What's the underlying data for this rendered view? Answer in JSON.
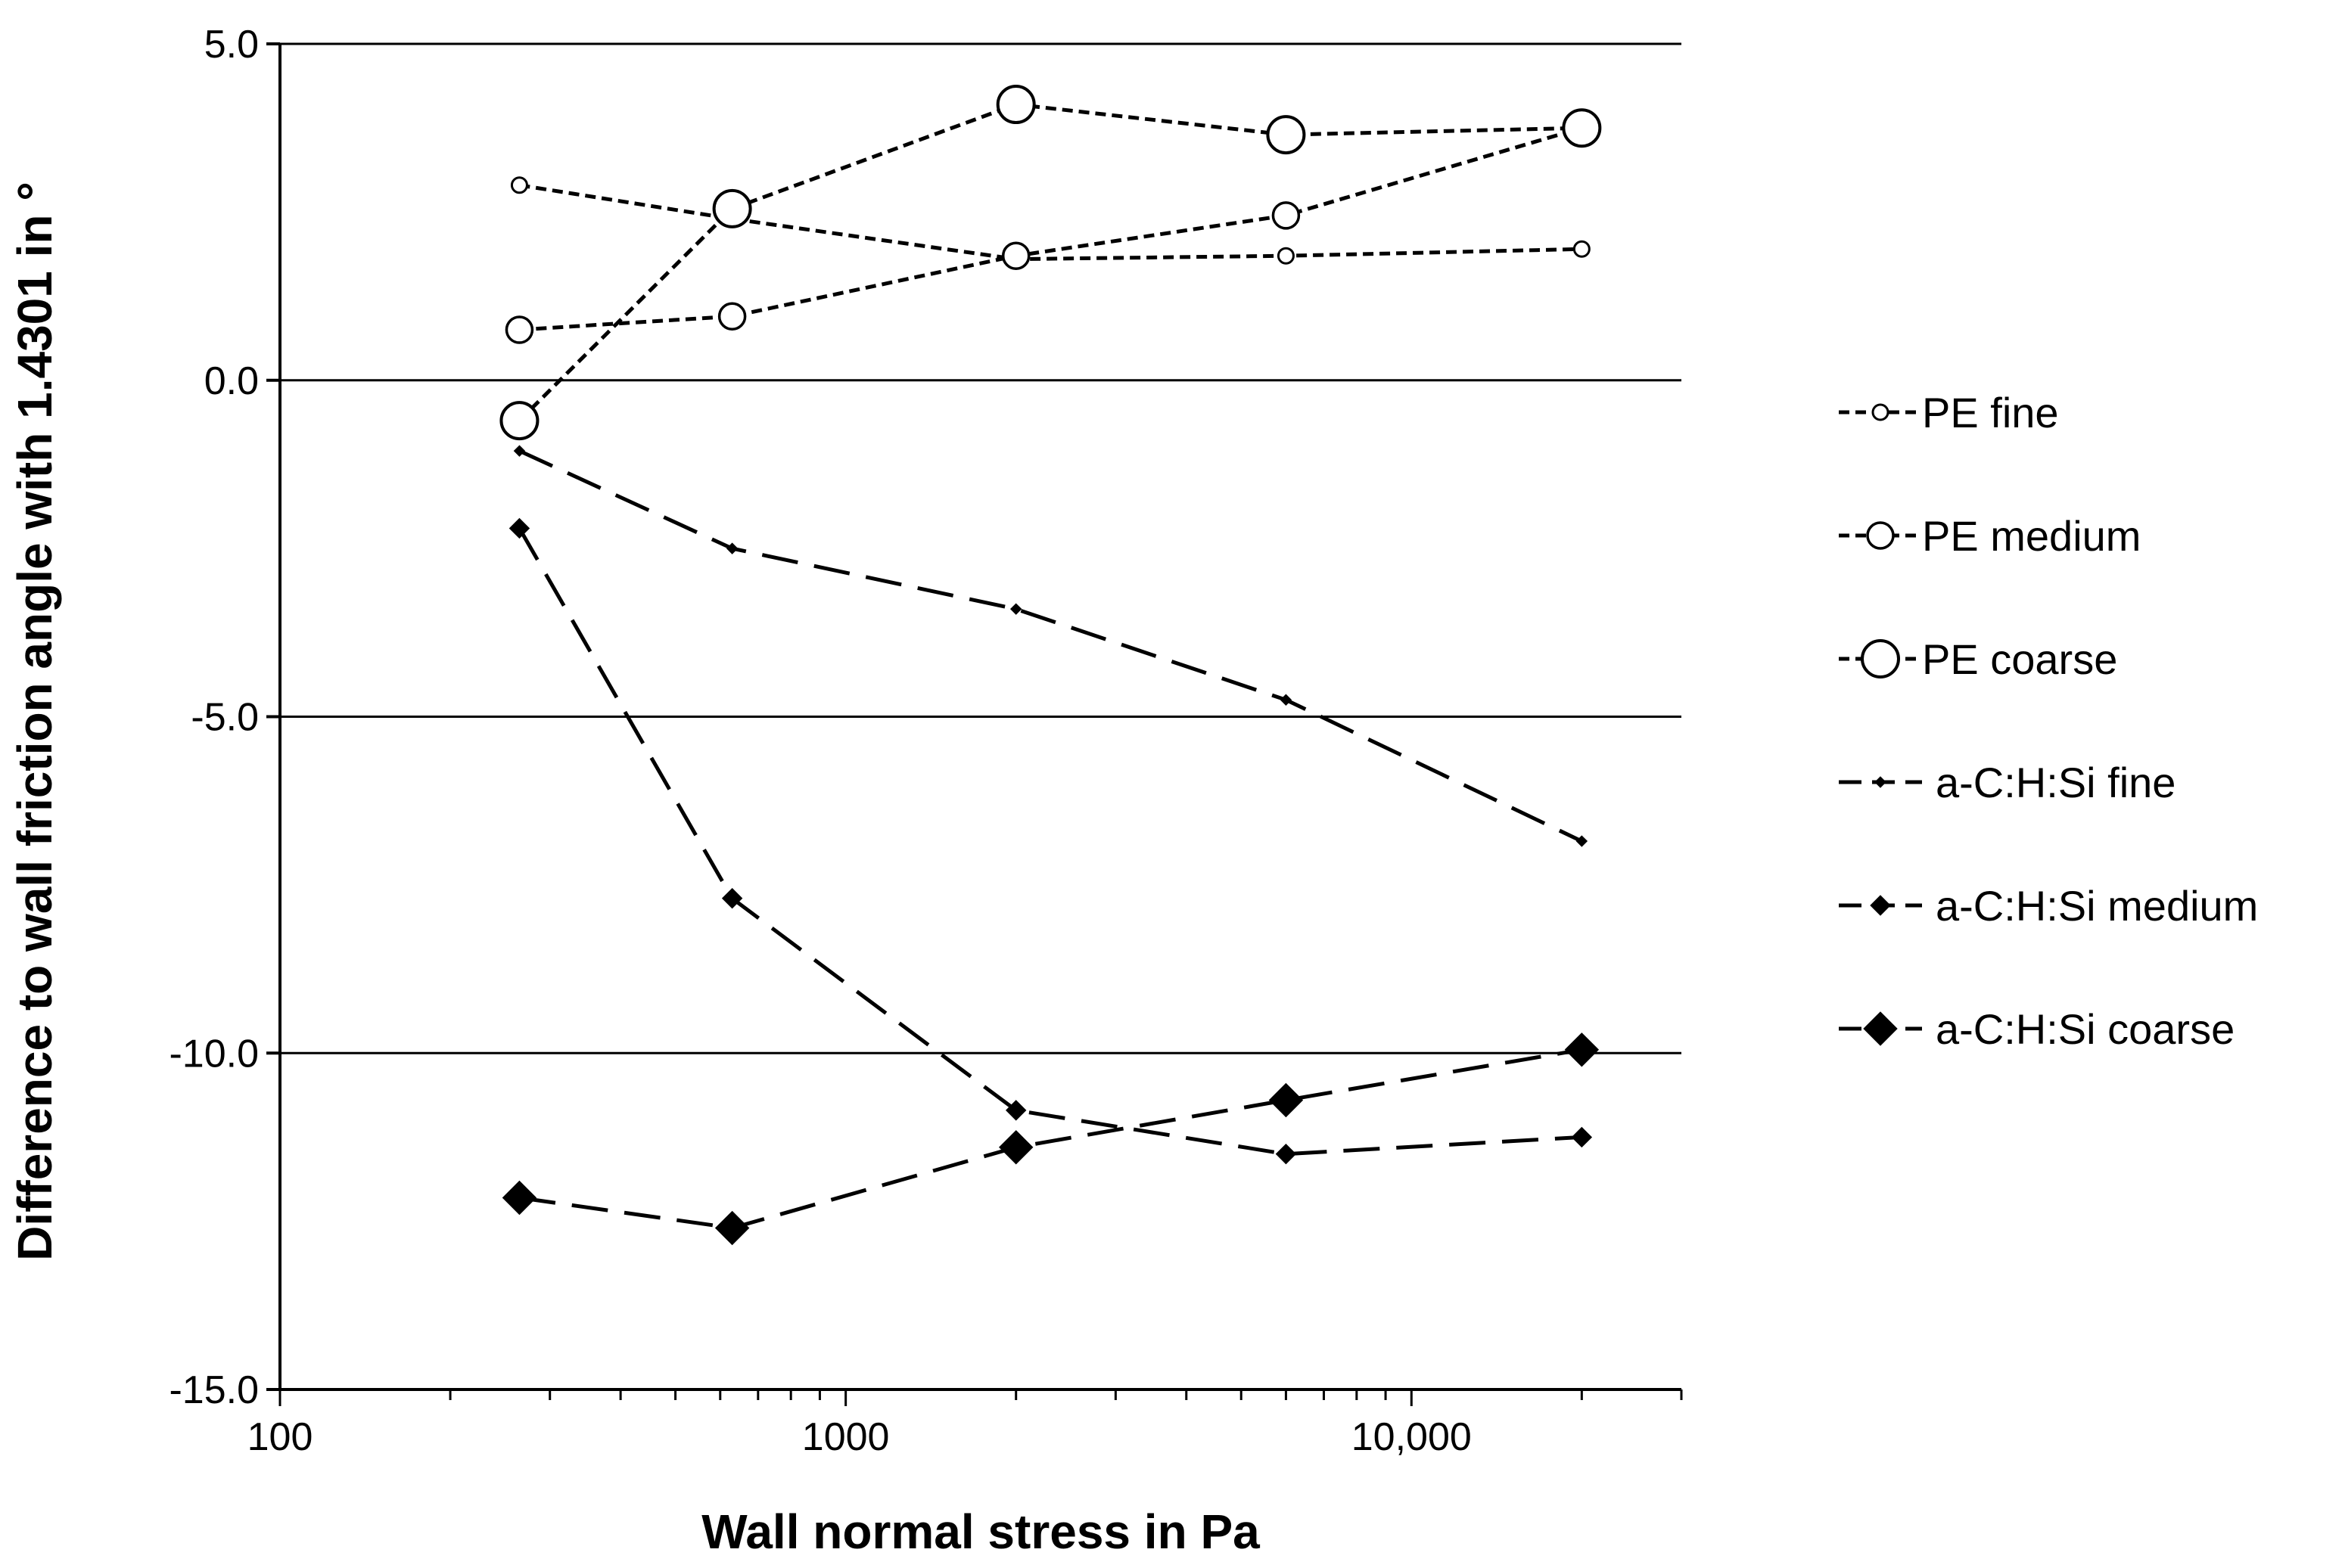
{
  "chart_data": {
    "type": "line",
    "title": "",
    "xlabel": "Wall normal stress in Pa",
    "ylabel": "Difference to wall friction angle with 1.4301 in °",
    "xscale": "log",
    "xlim": [
      100,
      30000
    ],
    "ylim": [
      -15,
      5
    ],
    "xticks": [
      100,
      1000,
      10000
    ],
    "xtick_labels": [
      "100",
      "1000",
      "10,000"
    ],
    "yticks": [
      5,
      0,
      -5,
      -10,
      -15
    ],
    "ytick_labels": [
      "5.0",
      "0.0",
      "-5.0",
      "-10.0",
      "-15.0"
    ],
    "grid": "horizontal",
    "legend_position": "right",
    "x": [
      265,
      630,
      2000,
      6000,
      20000
    ],
    "series": [
      {
        "name": "PE fine",
        "legend_label": "PE fine",
        "marker": "circle-small",
        "dash": "short",
        "values": [
          2.9,
          2.4,
          1.8,
          1.85,
          1.95
        ]
      },
      {
        "name": "PE medium",
        "legend_label": "PE medium",
        "marker": "circle-medium",
        "dash": "short",
        "values": [
          0.75,
          0.95,
          1.85,
          2.45,
          3.75
        ]
      },
      {
        "name": "PE coarse",
        "legend_label": "PE coarse",
        "marker": "circle-large",
        "dash": "short",
        "values": [
          -0.6,
          2.55,
          4.1,
          3.65,
          3.75
        ]
      },
      {
        "name": "a-C:H:Si fine",
        "legend_label": "a-C:H:Si  fine",
        "marker": "diamond-small",
        "dash": "long",
        "values": [
          -1.05,
          -2.5,
          -3.4,
          -4.75,
          -6.85
        ]
      },
      {
        "name": "a-C:H:Si medium",
        "legend_label": "a-C:H:Si  medium",
        "marker": "diamond-medium",
        "dash": "long",
        "values": [
          -2.2,
          -7.7,
          -10.85,
          -11.5,
          -11.25
        ]
      },
      {
        "name": "a-C:H:Si coarse",
        "legend_label": "a-C:H:Si  coarse",
        "marker": "diamond-large",
        "dash": "long",
        "values": [
          -12.15,
          -12.6,
          -11.4,
          -10.7,
          -9.95
        ]
      }
    ]
  }
}
